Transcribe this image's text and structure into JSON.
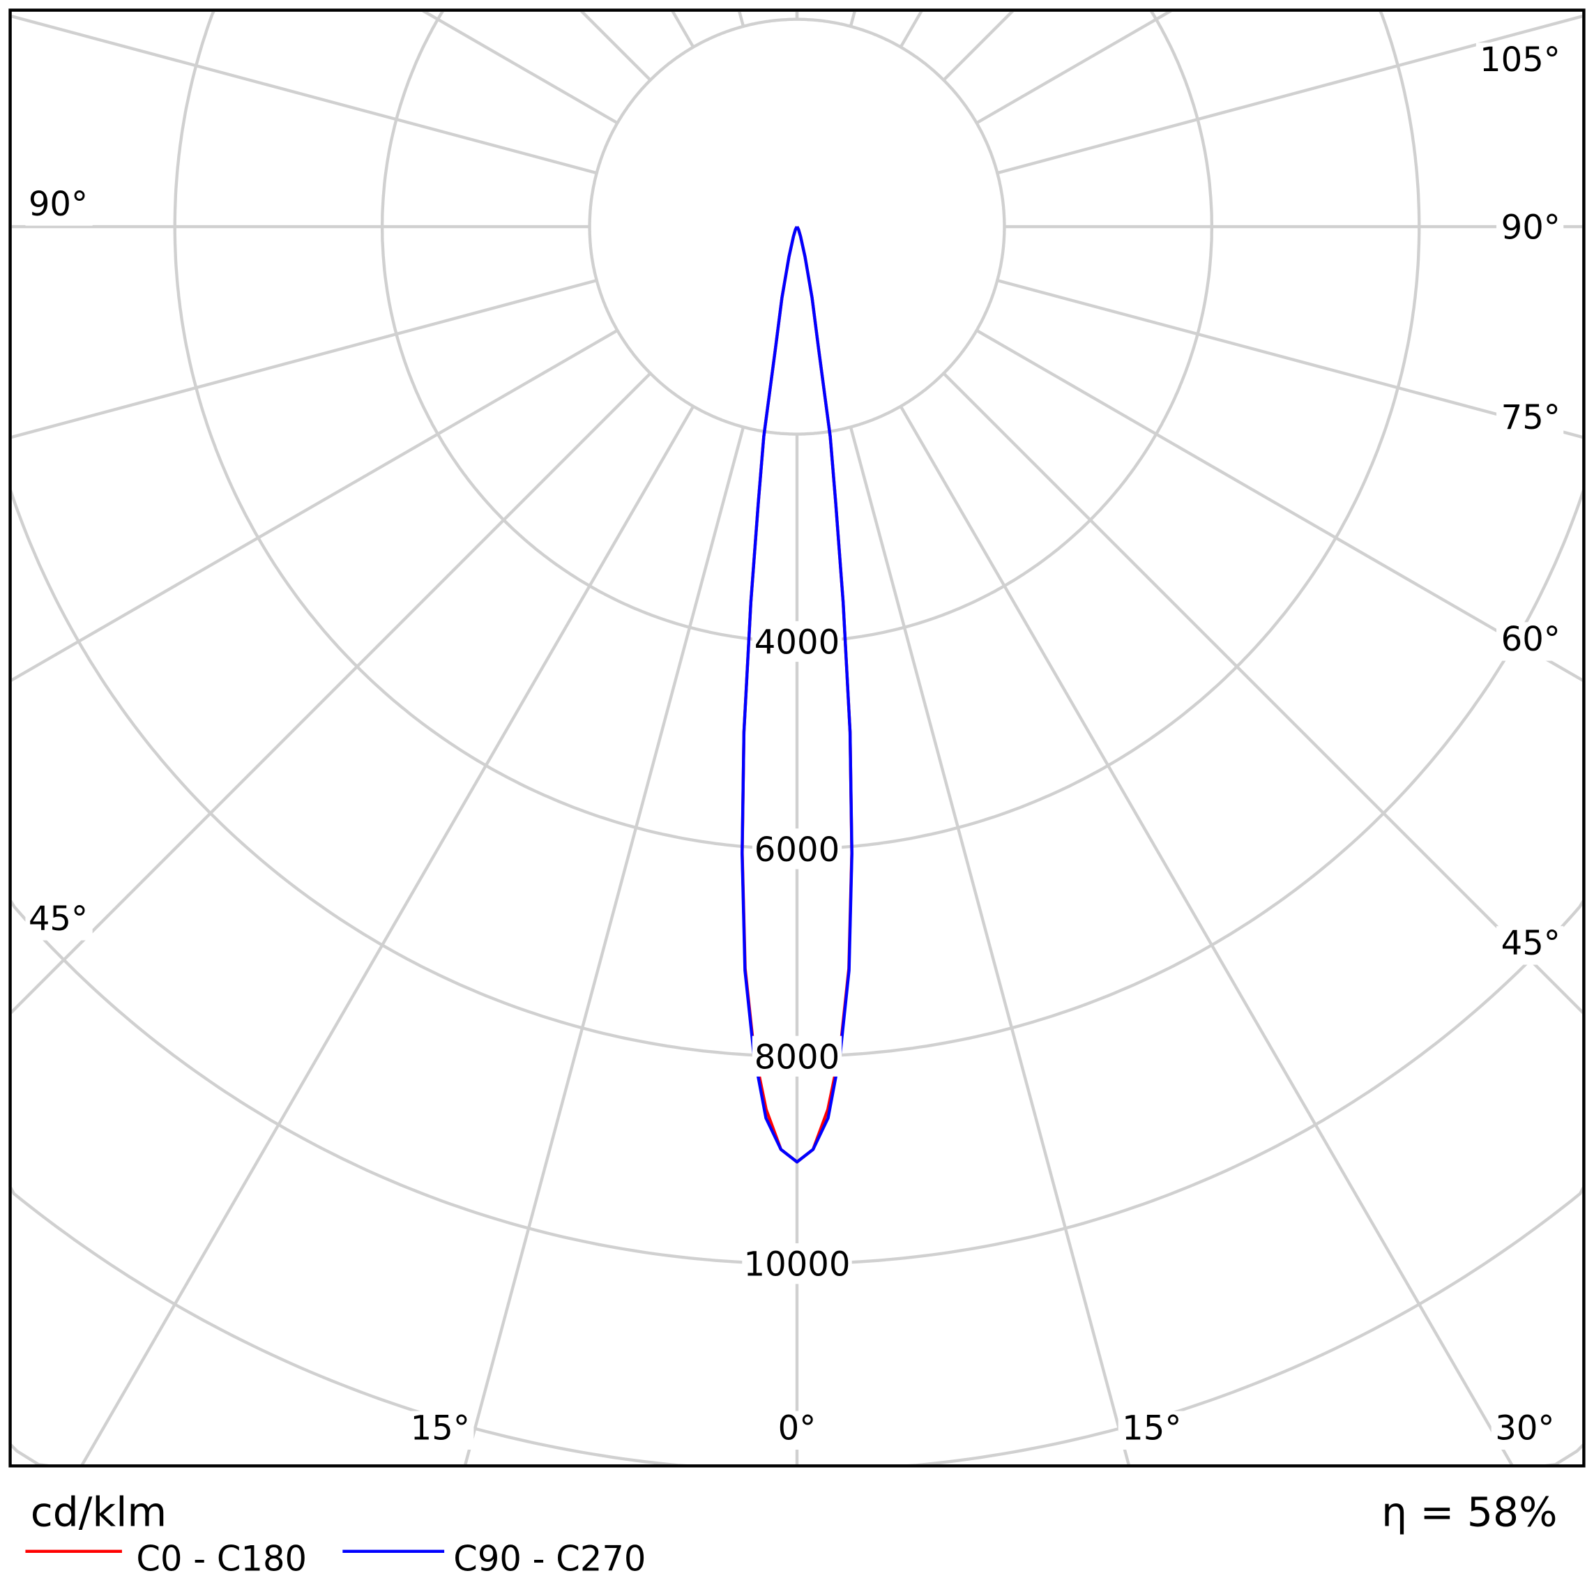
{
  "chart_data": {
    "type": "polar-line",
    "unit_label": "cd/klm",
    "efficiency_label": "η = 58%",
    "radial_max": 14000,
    "radial_step": 2000,
    "radial_tick_labels": [
      "4000",
      "6000",
      "8000",
      "10000"
    ],
    "radial_tick_values": [
      4000,
      6000,
      8000,
      10000
    ],
    "angle_labels": {
      "bottom": [
        "15°",
        "0°",
        "15°",
        "30°"
      ],
      "right": [
        "105°",
        "90°",
        "75°",
        "60°",
        "45°"
      ],
      "left": [
        "90°",
        "45°"
      ]
    },
    "grid": true,
    "grid_color": "#d0d0d0",
    "angle_step_deg": 15,
    "legend_placement": "bottom-left",
    "series": [
      {
        "name": "C0 - C180",
        "color": "#ff0000",
        "angles_deg": [
          0,
          1,
          2,
          3,
          4,
          5,
          6,
          7,
          8,
          9,
          10,
          12,
          15,
          20,
          30,
          90
        ],
        "values": [
          9020,
          8900,
          8520,
          7950,
          7170,
          6060,
          4900,
          3650,
          2680,
          2050,
          1200,
          700,
          300,
          100,
          30,
          0
        ]
      },
      {
        "name": "C90 - C270",
        "color": "#0000ff",
        "angles_deg": [
          0,
          1,
          2,
          3,
          4,
          5,
          6,
          7,
          8,
          9,
          10,
          12,
          15,
          20,
          30,
          90
        ],
        "values": [
          9020,
          8900,
          8600,
          7980,
          7190,
          6070,
          4900,
          3650,
          2680,
          2050,
          1200,
          700,
          300,
          100,
          30,
          0
        ]
      }
    ]
  }
}
